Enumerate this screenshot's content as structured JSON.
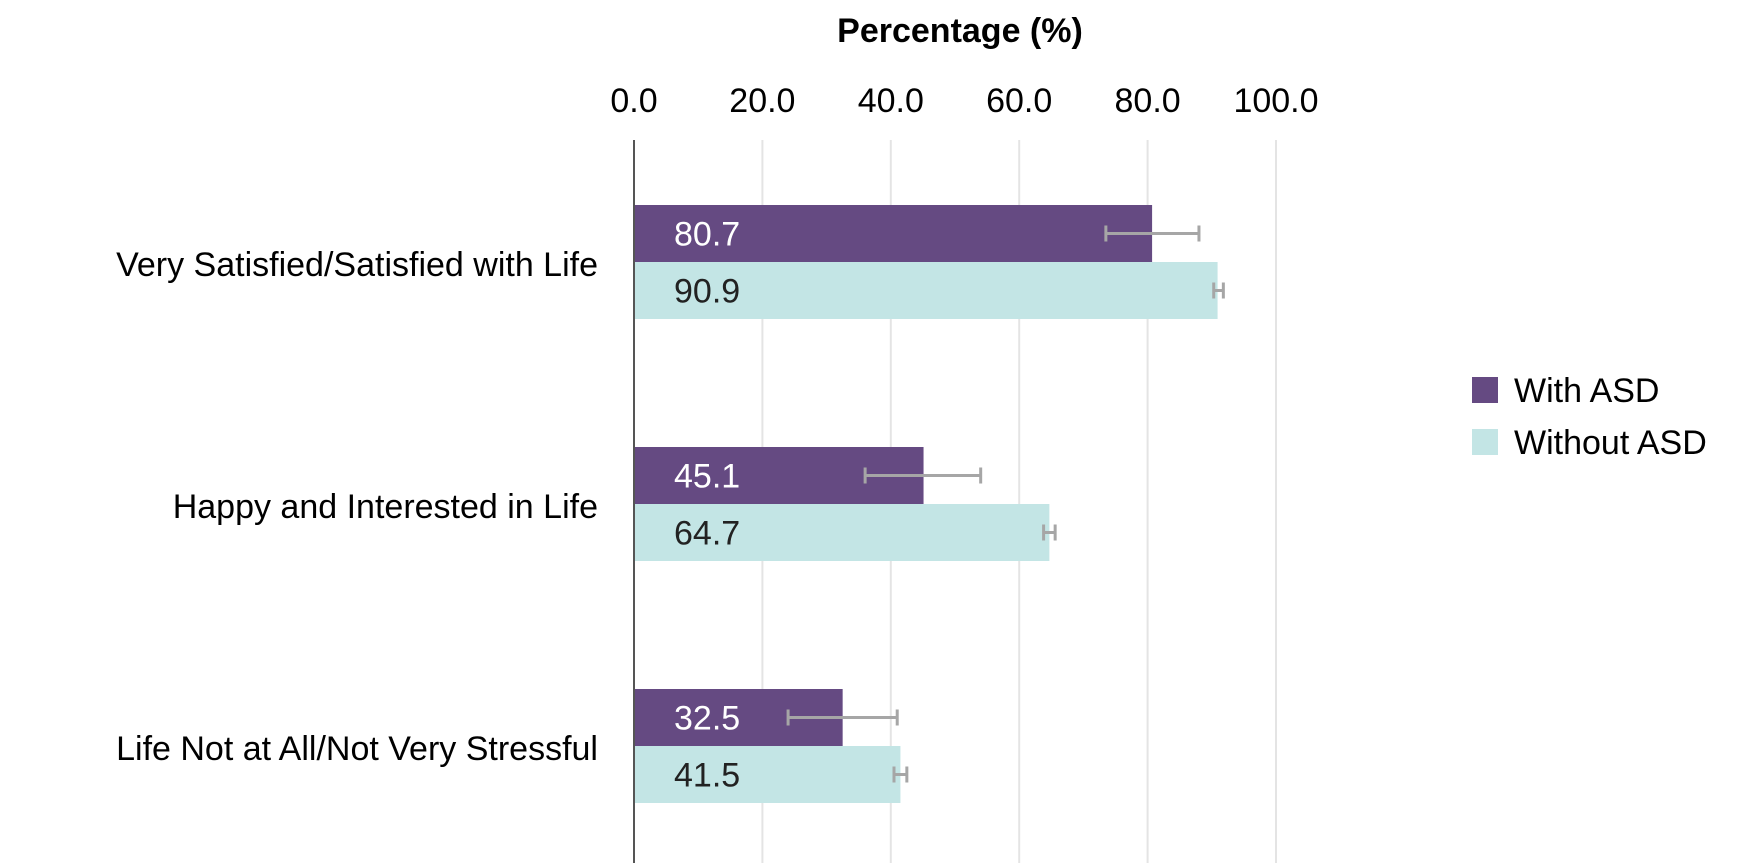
{
  "chart_data": {
    "type": "bar",
    "orientation": "horizontal",
    "xlabel": "Percentage (%)",
    "xaxis_position": "top",
    "xlim": [
      0,
      100
    ],
    "x_ticks": [
      0,
      20,
      40,
      60,
      80,
      100
    ],
    "x_tick_labels": [
      "0.0",
      "20.0",
      "40.0",
      "60.0",
      "80.0",
      "100.0"
    ],
    "grid": true,
    "legend_position": "right",
    "categories": [
      "Very Satisfied/Satisfied with Life",
      "Happy and Interested in Life",
      "Life Not at All/Not Very Stressful"
    ],
    "series": [
      {
        "name": "With ASD",
        "color": "#654a82",
        "label_color": "#ffffff",
        "values": [
          80.7,
          45.1,
          32.5
        ],
        "value_labels": [
          "80.7",
          "45.1",
          "32.5"
        ],
        "error_low": [
          73.5,
          36.0,
          24.0
        ],
        "error_high": [
          88.0,
          54.0,
          41.0
        ]
      },
      {
        "name": "Without ASD",
        "color": "#c3e5e5",
        "label_color": "#222222",
        "values": [
          90.9,
          64.7,
          41.5
        ],
        "value_labels": [
          "90.9",
          "64.7",
          "41.5"
        ],
        "error_low": [
          90.3,
          63.8,
          40.5
        ],
        "error_high": [
          91.8,
          65.6,
          42.5
        ]
      }
    ]
  }
}
